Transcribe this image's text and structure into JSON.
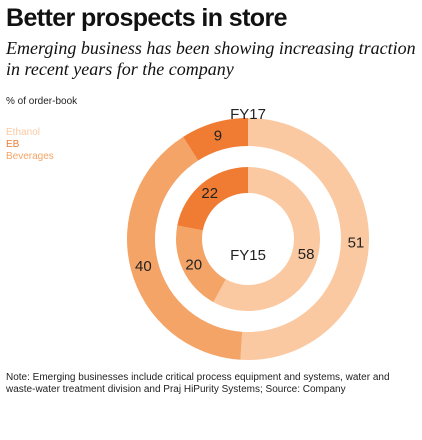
{
  "chart_data": {
    "type": "donut",
    "title": "Better prospects in store",
    "subtitle": "Emerging business has been showing increasing traction in recent years for the company",
    "unit_label": "% of order-book",
    "legend": [
      {
        "label": "Ethanol",
        "color": "#fbc9a1"
      },
      {
        "label": "EB",
        "color": "#f07c33"
      },
      {
        "label": "Beverages",
        "color": "#f4a466"
      }
    ],
    "rings": [
      {
        "name": "FY17",
        "ring": "outer",
        "values": {
          "Ethanol": 51,
          "EB": 9,
          "Beverages": 40
        }
      },
      {
        "name": "FY15",
        "ring": "inner",
        "values": {
          "Ethanol": 58,
          "EB": 22,
          "Beverages": 20
        }
      }
    ]
  },
  "note": "Note: Emerging businesses include critical process equipment and systems, water and waste-water treatment division and Praj HiPurity Systems; Source: Company"
}
